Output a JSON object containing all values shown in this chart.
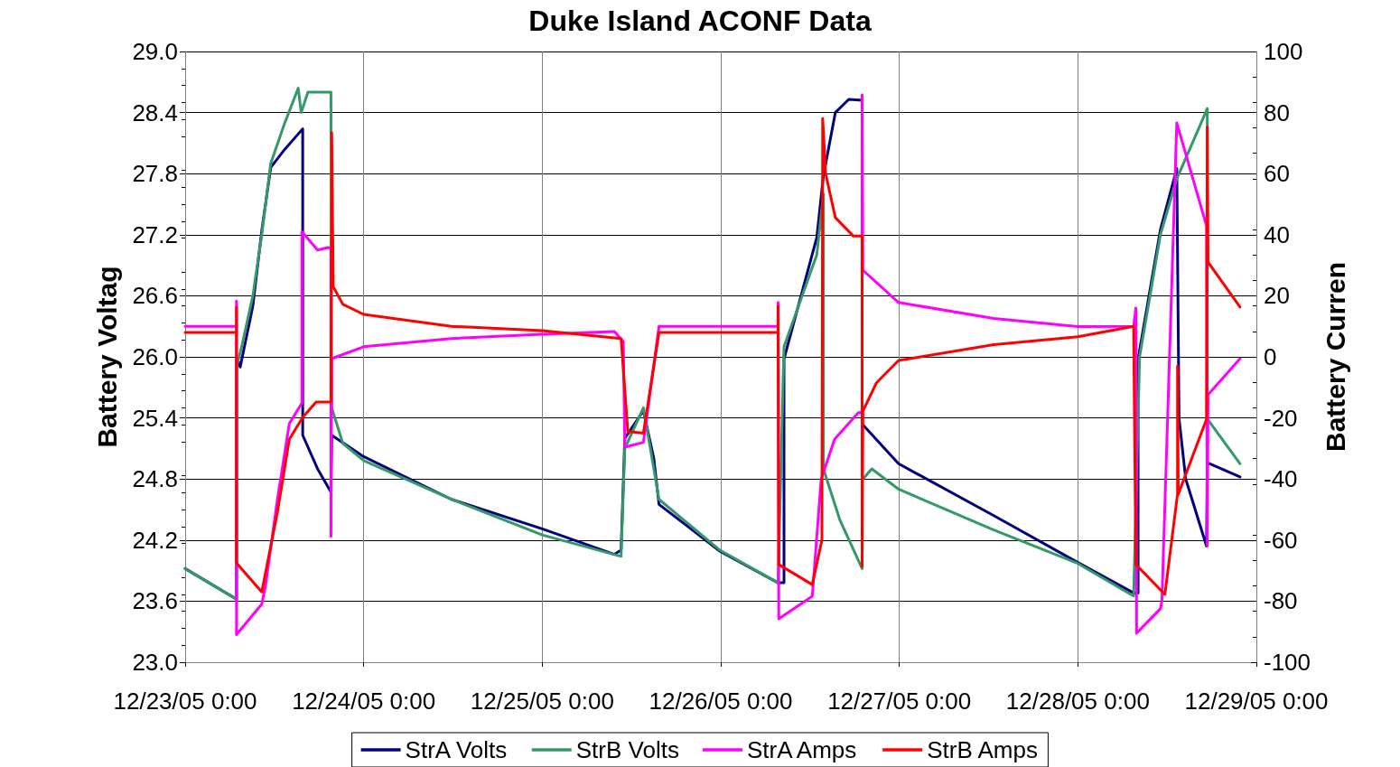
{
  "chart_data": {
    "type": "line",
    "title": "Duke Island ACONF Data",
    "ylabel": "Battery Voltag",
    "y2label": "Battery Curren",
    "xlim": [
      "--12-23T00:00",
      "--12-29T00:00"
    ],
    "xticks": [
      {
        "value": "--12-23T00:00",
        "label": "12/23/05 0:00"
      },
      {
        "value": "--12-24T00:00",
        "label": "12/24/05 0:00"
      },
      {
        "value": "--12-25T00:00",
        "label": "12/25/05 0:00"
      },
      {
        "value": "--12-26T00:00",
        "label": "12/26/05 0:00"
      },
      {
        "value": "--12-27T00:00",
        "label": "12/27/05 0:00"
      },
      {
        "value": "--12-28T00:00",
        "label": "12/28/05 0:00"
      },
      {
        "value": "--12-29T00:00",
        "label": "12/29/05 0:00"
      }
    ],
    "ylim": [
      23,
      29
    ],
    "yticks": [
      {
        "value": 23,
        "label": "23.0"
      },
      {
        "value": 23.6,
        "label": "23.6"
      },
      {
        "value": 24.2,
        "label": "24.2"
      },
      {
        "value": 24.8,
        "label": "24.8"
      },
      {
        "value": 25.4,
        "label": "25.4"
      },
      {
        "value": 26,
        "label": "26.0"
      },
      {
        "value": 26.6,
        "label": "26.6"
      },
      {
        "value": 27.2,
        "label": "27.2"
      },
      {
        "value": 27.8,
        "label": "27.8"
      },
      {
        "value": 28.4,
        "label": "28.4"
      },
      {
        "value": 29,
        "label": "29.0"
      }
    ],
    "y2lim": [
      -100,
      100
    ],
    "y2ticks": [
      -100,
      -80,
      -60,
      -40,
      -20,
      0,
      20,
      40,
      60,
      80,
      100
    ],
    "grid": true,
    "legend": "bottom",
    "marker": "none",
    "line_style": "solid",
    "series": [
      {
        "name": "StrA Volts",
        "color": "#000080",
        "x": [
          "--12-23T00:00",
          "--12-23T06:54",
          "--12-23T06:54",
          "--12-23T07:24",
          "--12-23T09:06",
          "--12-23T10:18",
          "--12-23T11:30",
          "--12-23T13:24",
          "--12-23T15:48",
          "--12-23T15:48",
          "--12-23T17:48",
          "--12-23T19:36",
          "--12-23T19:42",
          "--12-24T00:00",
          "--12-24T11:48",
          "--12-25T00:00",
          "--12-25T09:42",
          "--12-25T10:36",
          "--12-25T11:06",
          "--12-25T13:36",
          "--12-25T15:00",
          "--12-25T15:42",
          "--12-25T23:54",
          "--12-26T07:42",
          "--12-26T08:30",
          "--12-26T08:30",
          "--12-26T12:54",
          "--12-26T13:48",
          "--12-26T15:24",
          "--12-26T17:12",
          "--12-26T19:00",
          "--12-26T19:00",
          "--12-26T23:54",
          "--12-27T12:42",
          "--12-28T00:00",
          "--12-28T07:30",
          "--12-28T08:06",
          "--12-28T08:06",
          "--12-28T11:06",
          "--12-28T13:18",
          "--12-28T13:36",
          "--12-28T14:30",
          "--12-28T17:18",
          "--12-28T17:24",
          "--12-28T21:48"
        ],
        "values": [
          23.92,
          23.62,
          26.0,
          25.9,
          26.5,
          27.24,
          27.86,
          28.04,
          28.24,
          25.23,
          24.9,
          24.67,
          25.23,
          25.02,
          24.6,
          24.31,
          24.06,
          24.1,
          25.2,
          25.47,
          25.0,
          24.55,
          24.09,
          23.78,
          23.78,
          25.98,
          27.17,
          27.78,
          28.4,
          28.53,
          28.52,
          25.34,
          24.95,
          24.44,
          23.98,
          23.68,
          23.68,
          25.98,
          27.25,
          27.85,
          25.4,
          24.8,
          24.14,
          24.96,
          24.82
        ]
      },
      {
        "name": "StrB Volts",
        "color": "#339966",
        "x": [
          "--12-23T00:00",
          "--12-23T06:54",
          "--12-23T06:54",
          "--12-23T07:36",
          "--12-23T09:06",
          "--12-23T10:18",
          "--12-23T11:30",
          "--12-23T13:24",
          "--12-23T15:12",
          "--12-23T15:36",
          "--12-23T16:30",
          "--12-23T19:36",
          "--12-23T19:42",
          "--12-23T21:12",
          "--12-24T00:00",
          "--12-24T11:48",
          "--12-25T00:00",
          "--12-25T10:36",
          "--12-25T11:06",
          "--12-25T13:36",
          "--12-25T15:42",
          "--12-25T23:54",
          "--12-26T07:42",
          "--12-26T08:30",
          "--12-26T12:54",
          "--12-26T13:48",
          "--12-26T13:48",
          "--12-26T16:00",
          "--12-26T19:00",
          "--12-26T19:00",
          "--12-26T20:18",
          "--12-26T23:54",
          "--12-27T12:42",
          "--12-28T00:00",
          "--12-28T07:30",
          "--12-28T08:18",
          "--12-28T11:06",
          "--12-28T13:18",
          "--12-28T15:24",
          "--12-28T17:24",
          "--12-28T17:24",
          "--12-28T21:48"
        ],
        "values": [
          23.92,
          23.62,
          25.9,
          26.1,
          26.6,
          27.2,
          27.9,
          28.3,
          28.64,
          28.4,
          28.6,
          28.6,
          25.5,
          25.15,
          24.98,
          24.6,
          24.25,
          24.04,
          25.1,
          25.5,
          24.6,
          24.1,
          23.78,
          26.1,
          27.0,
          27.6,
          24.9,
          24.4,
          23.92,
          24.79,
          24.9,
          24.7,
          24.3,
          23.97,
          23.65,
          26.0,
          27.2,
          27.75,
          28.1,
          28.44,
          25.39,
          24.95
        ]
      },
      {
        "name": "StrA Amps",
        "color": "#ff00ff",
        "axis": "y2",
        "x": [
          "--12-23T00:00",
          "--12-23T06:54",
          "--12-23T06:54",
          "--12-23T06:54",
          "--12-23T10:18",
          "--12-23T10:48",
          "--12-23T12:24",
          "--12-23T14:00",
          "--12-23T15:42",
          "--12-23T15:42",
          "--12-23T17:48",
          "--12-23T19:12",
          "--12-23T19:36",
          "--12-23T19:36",
          "--12-23T19:42",
          "--12-24T00:00",
          "--12-24T11:48",
          "--12-25T00:00",
          "--12-25T09:42",
          "--12-25T10:54",
          "--12-25T11:06",
          "--12-25T13:36",
          "--12-25T15:42",
          "--12-26T07:42",
          "--12-26T07:42",
          "--12-26T07:48",
          "--12-26T12:18",
          "--12-26T13:30",
          "--12-26T15:18",
          "--12-26T18:30",
          "--12-26T19:00",
          "--12-26T19:00",
          "--12-26T19:06",
          "--12-26T23:54",
          "--12-27T12:42",
          "--12-28T00:00",
          "--12-28T07:30",
          "--12-28T07:48",
          "--12-28T07:54",
          "--12-28T11:06",
          "--12-28T11:18",
          "--12-28T13:18",
          "--12-28T15:24",
          "--12-28T17:18",
          "--12-28T17:24",
          "--12-28T17:30",
          "--12-28T21:48"
        ],
        "values": [
          10,
          10,
          18.3,
          -91,
          -81,
          -75,
          -46.7,
          -21.9,
          -15.1,
          41,
          35,
          35.8,
          35.5,
          -58.8,
          -0.6,
          3.3,
          6,
          7.4,
          8.3,
          5,
          -29.6,
          -28,
          10,
          10,
          17.8,
          -85.8,
          -78.4,
          -40,
          -27,
          -18.3,
          -18.3,
          85.8,
          28.4,
          17.8,
          12.6,
          9.9,
          10,
          16,
          -90.5,
          -82.5,
          -80,
          76.6,
          58.9,
          42.9,
          -62,
          -12.4,
          -0.6
        ]
      },
      {
        "name": "StrB Amps",
        "color": "#ff0000",
        "axis": "y2",
        "x": [
          "--12-23T00:00",
          "--12-23T06:54",
          "--12-23T06:54",
          "--12-23T06:54",
          "--12-23T10:18",
          "--12-23T12:24",
          "--12-23T14:00",
          "--12-23T15:48",
          "--12-23T17:36",
          "--12-23T19:36",
          "--12-23T19:42",
          "--12-23T19:54",
          "--12-23T21:12",
          "--12-24T00:00",
          "--12-24T11:48",
          "--12-25T00:00",
          "--12-25T10:36",
          "--12-25T11:30",
          "--12-25T13:36",
          "--12-25T15:42",
          "--12-26T07:42",
          "--12-26T07:42",
          "--12-26T07:48",
          "--12-26T12:18",
          "--12-26T13:36",
          "--12-26T13:42",
          "--12-26T14:06",
          "--12-26T15:24",
          "--12-26T17:48",
          "--12-26T19:00",
          "--12-26T19:00",
          "--12-26T19:06",
          "--12-26T20:54",
          "--12-26T23:54",
          "--12-27T12:42",
          "--12-28T00:00",
          "--12-28T07:30",
          "--12-28T07:48",
          "--12-28T11:42",
          "--12-28T13:24",
          "--12-28T13:24",
          "--12-28T13:30",
          "--12-28T17:18",
          "--12-28T17:24",
          "--12-28T17:30",
          "--12-28T21:48"
        ],
        "values": [
          8,
          8,
          16.3,
          -67.5,
          -77,
          -50.9,
          -27,
          -19.8,
          -14.8,
          -14.8,
          73.4,
          23,
          17.2,
          13.9,
          10,
          8.6,
          6,
          -24.4,
          -25,
          8,
          8,
          16.6,
          -68,
          -74.6,
          -60,
          78,
          60,
          45.6,
          39.6,
          39.6,
          -68.6,
          -17.8,
          -8.6,
          -1.2,
          4,
          6.6,
          10,
          -68,
          -77.8,
          -45,
          -3,
          -45,
          -20.4,
          75.3,
          31,
          16.3
        ]
      }
    ]
  }
}
